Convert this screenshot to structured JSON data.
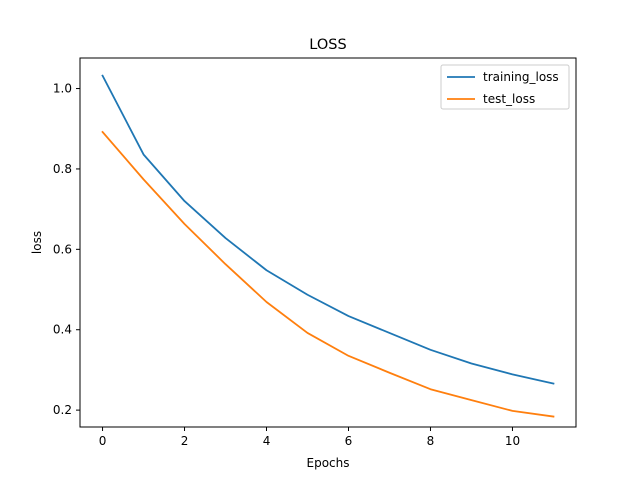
{
  "chart_data": {
    "type": "line",
    "title": "LOSS",
    "xlabel": "Epochs",
    "ylabel": "loss",
    "xlim": [
      -0.55,
      11.55
    ],
    "ylim": [
      0.158,
      1.076
    ],
    "xticks": [
      0,
      2,
      4,
      6,
      8,
      10
    ],
    "yticks": [
      0.2,
      0.4,
      0.6,
      0.8,
      1.0
    ],
    "xtick_labels": [
      "0",
      "2",
      "4",
      "6",
      "8",
      "10"
    ],
    "ytick_labels": [
      "0.2",
      "0.4",
      "0.6",
      "0.8",
      "1.0"
    ],
    "grid": false,
    "legend_position": "top-right",
    "x": [
      0,
      1,
      2,
      3,
      4,
      5,
      6,
      7,
      8,
      9,
      10,
      11
    ],
    "series": [
      {
        "name": "training_loss",
        "color": "#1f77b4",
        "values": [
          1.032,
          0.836,
          0.72,
          0.628,
          0.548,
          0.487,
          0.434,
          0.392,
          0.35,
          0.316,
          0.289,
          0.266
        ]
      },
      {
        "name": "test_loss",
        "color": "#ff7f0e",
        "values": [
          0.892,
          0.774,
          0.663,
          0.563,
          0.469,
          0.392,
          0.335,
          0.293,
          0.252,
          0.225,
          0.198,
          0.184
        ]
      }
    ]
  }
}
